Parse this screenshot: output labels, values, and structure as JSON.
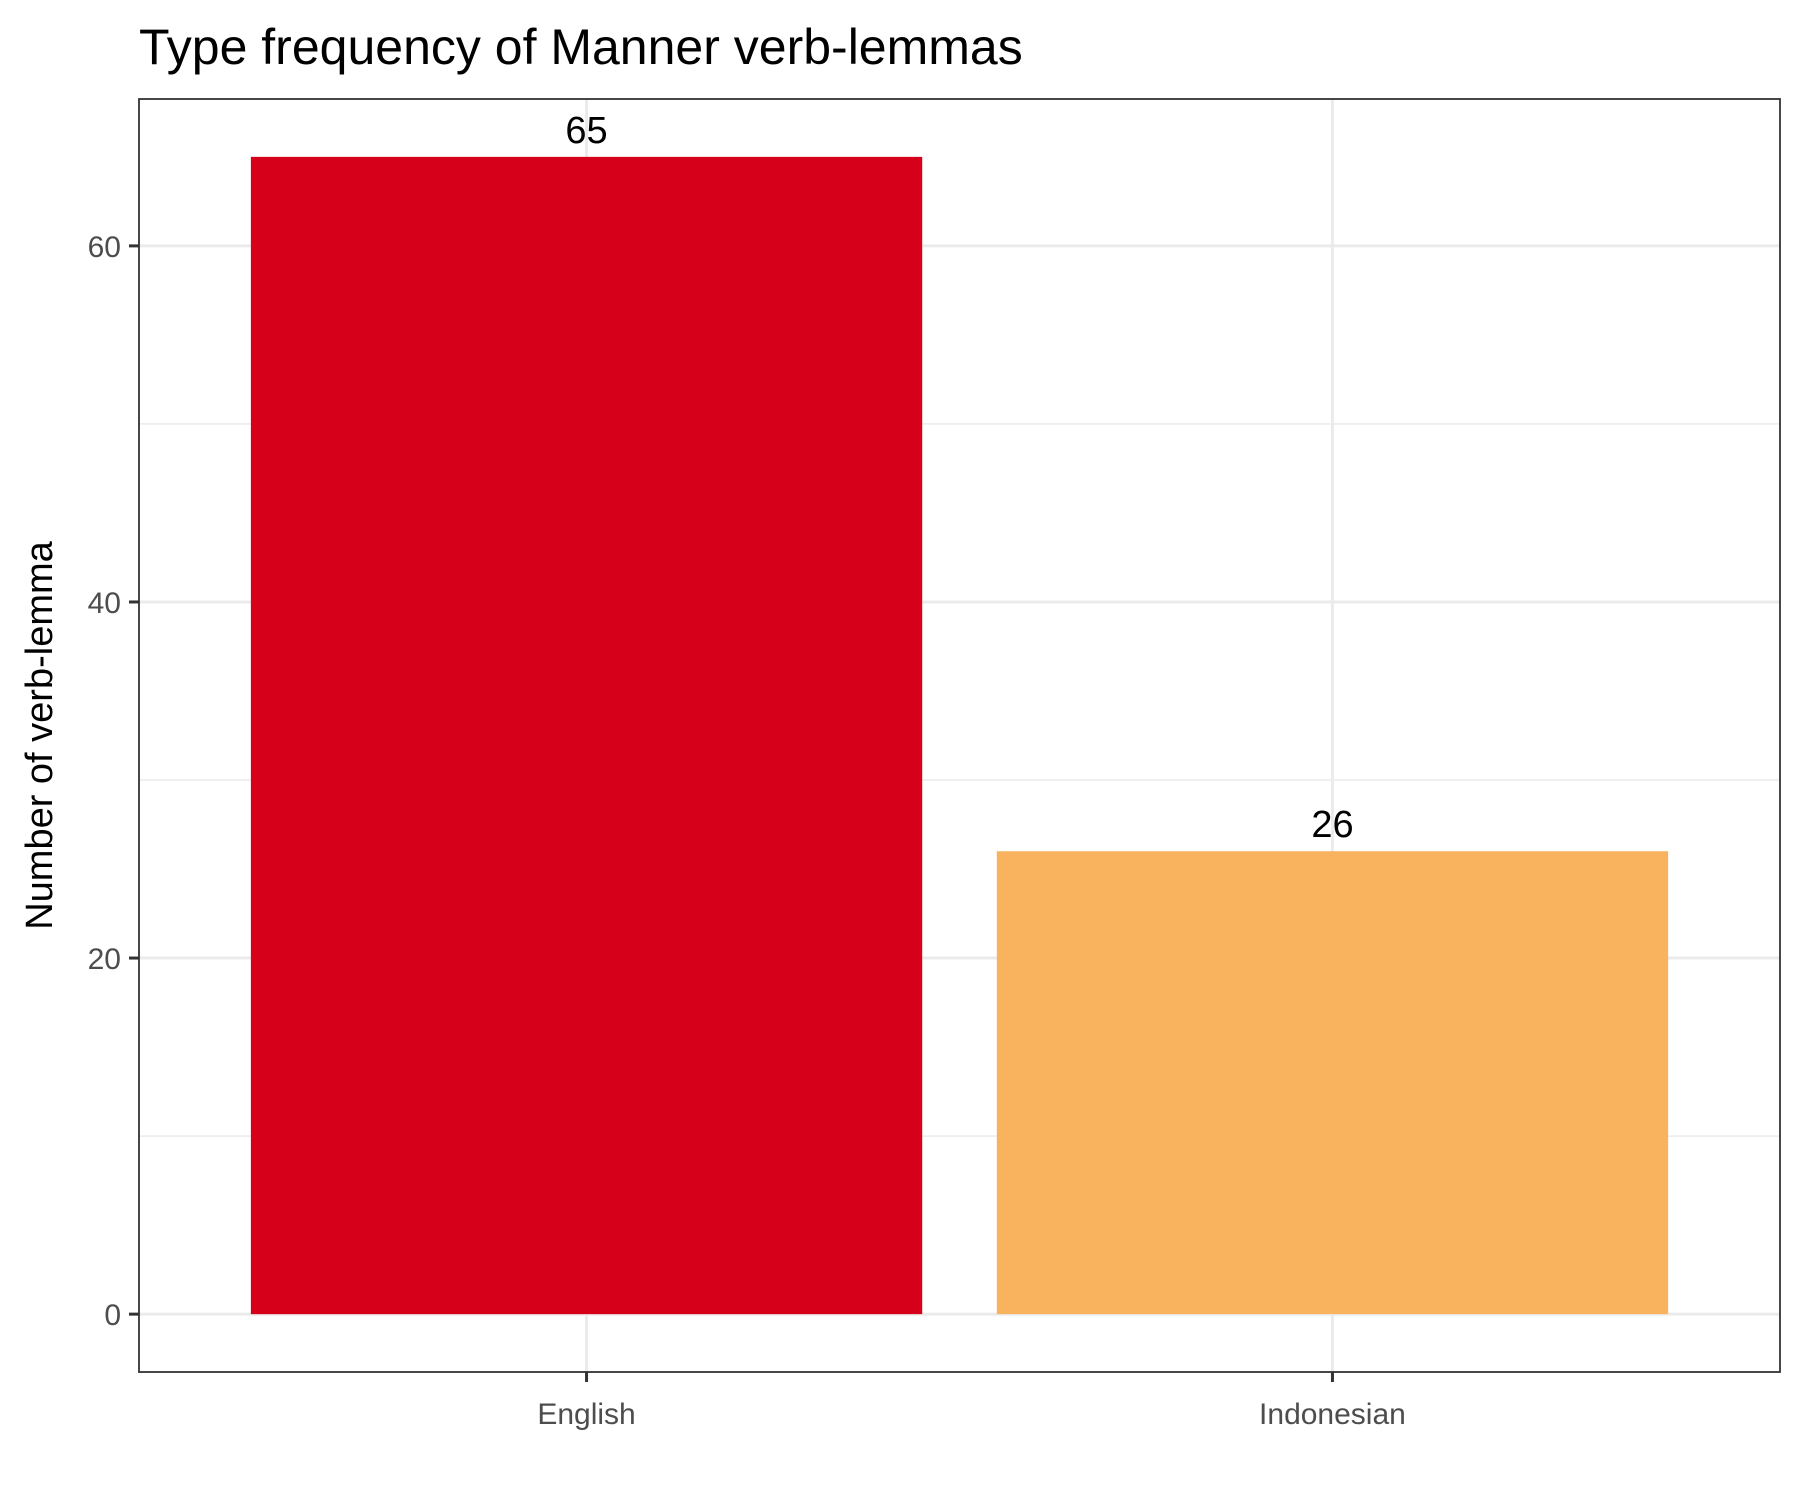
{
  "chart_data": {
    "type": "bar",
    "title": "Type frequency of Manner verb-lemmas",
    "xlabel": "",
    "ylabel": "Number of verb-lemma",
    "categories": [
      "English",
      "Indonesian"
    ],
    "values": [
      65,
      26
    ],
    "data_labels": [
      "65",
      "26"
    ],
    "bar_colors": [
      "#d7001a",
      "#f9b25e"
    ],
    "yticks": [
      0,
      20,
      40,
      60
    ],
    "ytick_labels": [
      "0",
      "20",
      "40",
      "60"
    ],
    "ylim": [
      -3.25,
      68.25
    ],
    "grid": true,
    "legend": "none"
  }
}
